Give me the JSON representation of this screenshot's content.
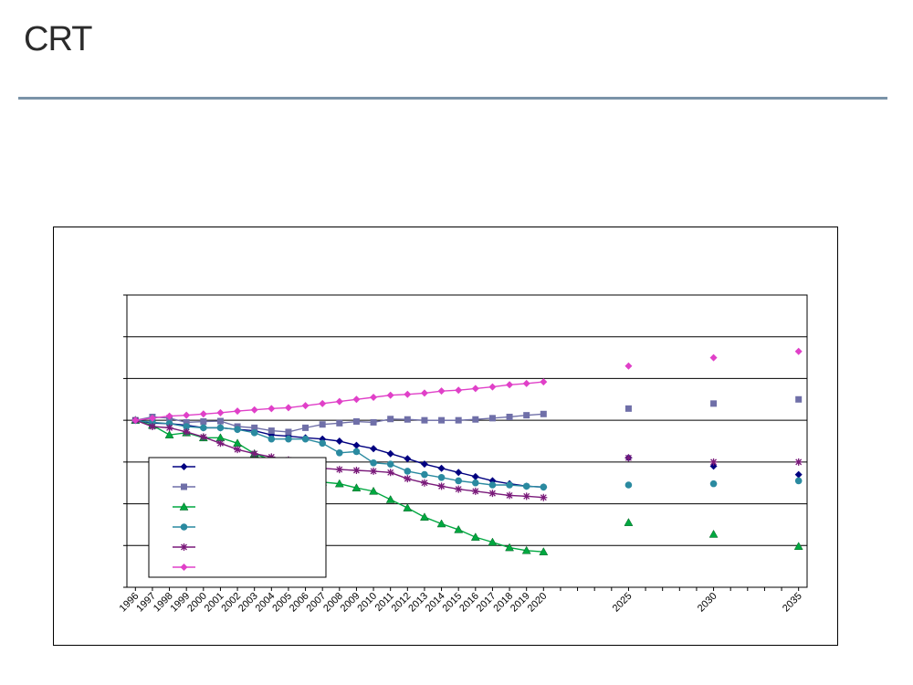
{
  "header": {
    "logo_text": "CRT"
  },
  "colors": {
    "rule": "#7a93a8",
    "series": [
      "#000080",
      "#6f6fa8",
      "#00a840",
      "#2a8aa0",
      "#7a1a7a",
      "#e040c8"
    ]
  },
  "chart_data": {
    "type": "line",
    "title": "",
    "xlabel": "",
    "ylabel": "",
    "x": [
      "1996",
      "1997",
      "1998",
      "1999",
      "2000",
      "2001",
      "2002",
      "2003",
      "2004",
      "2005",
      "2006",
      "2007",
      "2008",
      "2009",
      "2010",
      "2011",
      "2012",
      "2013",
      "2014",
      "2015",
      "2016",
      "2017",
      "2018",
      "2019",
      "2020",
      "2025",
      "2030",
      "2035"
    ],
    "x_years": [
      1996,
      1997,
      1998,
      1999,
      2000,
      2001,
      2002,
      2003,
      2004,
      2005,
      2006,
      2007,
      2008,
      2009,
      2010,
      2011,
      2012,
      2013,
      2014,
      2015,
      2016,
      2017,
      2018,
      2019,
      2020,
      2025,
      2030,
      2035
    ],
    "xlim": [
      1995.5,
      2035.5
    ],
    "ylim": [
      0,
      7
    ],
    "grid": true,
    "legend_position": "bottom-left",
    "series": [
      {
        "marker": "diamond",
        "values": [
          4.0,
          3.93,
          3.92,
          3.88,
          3.82,
          3.82,
          3.78,
          3.75,
          3.65,
          3.62,
          3.58,
          3.55,
          3.5,
          3.4,
          3.32,
          3.2,
          3.08,
          2.95,
          2.85,
          2.75,
          2.65,
          2.55,
          2.48,
          2.42,
          2.4,
          3.1,
          2.9,
          2.7
        ]
      },
      {
        "marker": "square",
        "values": [
          4.0,
          4.08,
          4.05,
          3.95,
          3.97,
          3.98,
          3.85,
          3.82,
          3.75,
          3.72,
          3.82,
          3.9,
          3.93,
          3.97,
          3.95,
          4.03,
          4.02,
          4.0,
          4.0,
          4.0,
          4.02,
          4.05,
          4.08,
          4.12,
          4.15,
          4.28,
          4.4,
          4.5
        ]
      },
      {
        "marker": "triangle",
        "values": [
          4.0,
          3.88,
          3.65,
          3.7,
          3.58,
          3.58,
          3.45,
          3.2,
          3.05,
          2.88,
          2.78,
          2.52,
          2.48,
          2.38,
          2.3,
          2.1,
          1.9,
          1.68,
          1.52,
          1.38,
          1.2,
          1.08,
          0.95,
          0.88,
          0.85,
          1.55,
          1.27,
          0.98
        ]
      },
      {
        "marker": "circle",
        "values": [
          4.0,
          3.95,
          3.92,
          3.85,
          3.82,
          3.82,
          3.78,
          3.7,
          3.55,
          3.55,
          3.55,
          3.45,
          3.22,
          3.25,
          2.98,
          2.95,
          2.78,
          2.7,
          2.63,
          2.55,
          2.5,
          2.45,
          2.45,
          2.42,
          2.4,
          2.45,
          2.48,
          2.55
        ]
      },
      {
        "marker": "star",
        "values": [
          4.0,
          3.85,
          3.82,
          3.72,
          3.6,
          3.45,
          3.3,
          3.2,
          3.12,
          3.05,
          2.95,
          2.85,
          2.82,
          2.8,
          2.78,
          2.75,
          2.6,
          2.5,
          2.42,
          2.35,
          2.3,
          2.25,
          2.2,
          2.18,
          2.15,
          3.1,
          3.0,
          3.0
        ]
      },
      {
        "marker": "diamond",
        "values": [
          4.0,
          4.05,
          4.1,
          4.12,
          4.15,
          4.18,
          4.22,
          4.25,
          4.28,
          4.3,
          4.35,
          4.4,
          4.45,
          4.5,
          4.55,
          4.6,
          4.62,
          4.65,
          4.7,
          4.72,
          4.76,
          4.8,
          4.85,
          4.88,
          4.92,
          5.3,
          5.5,
          5.65
        ]
      }
    ]
  }
}
